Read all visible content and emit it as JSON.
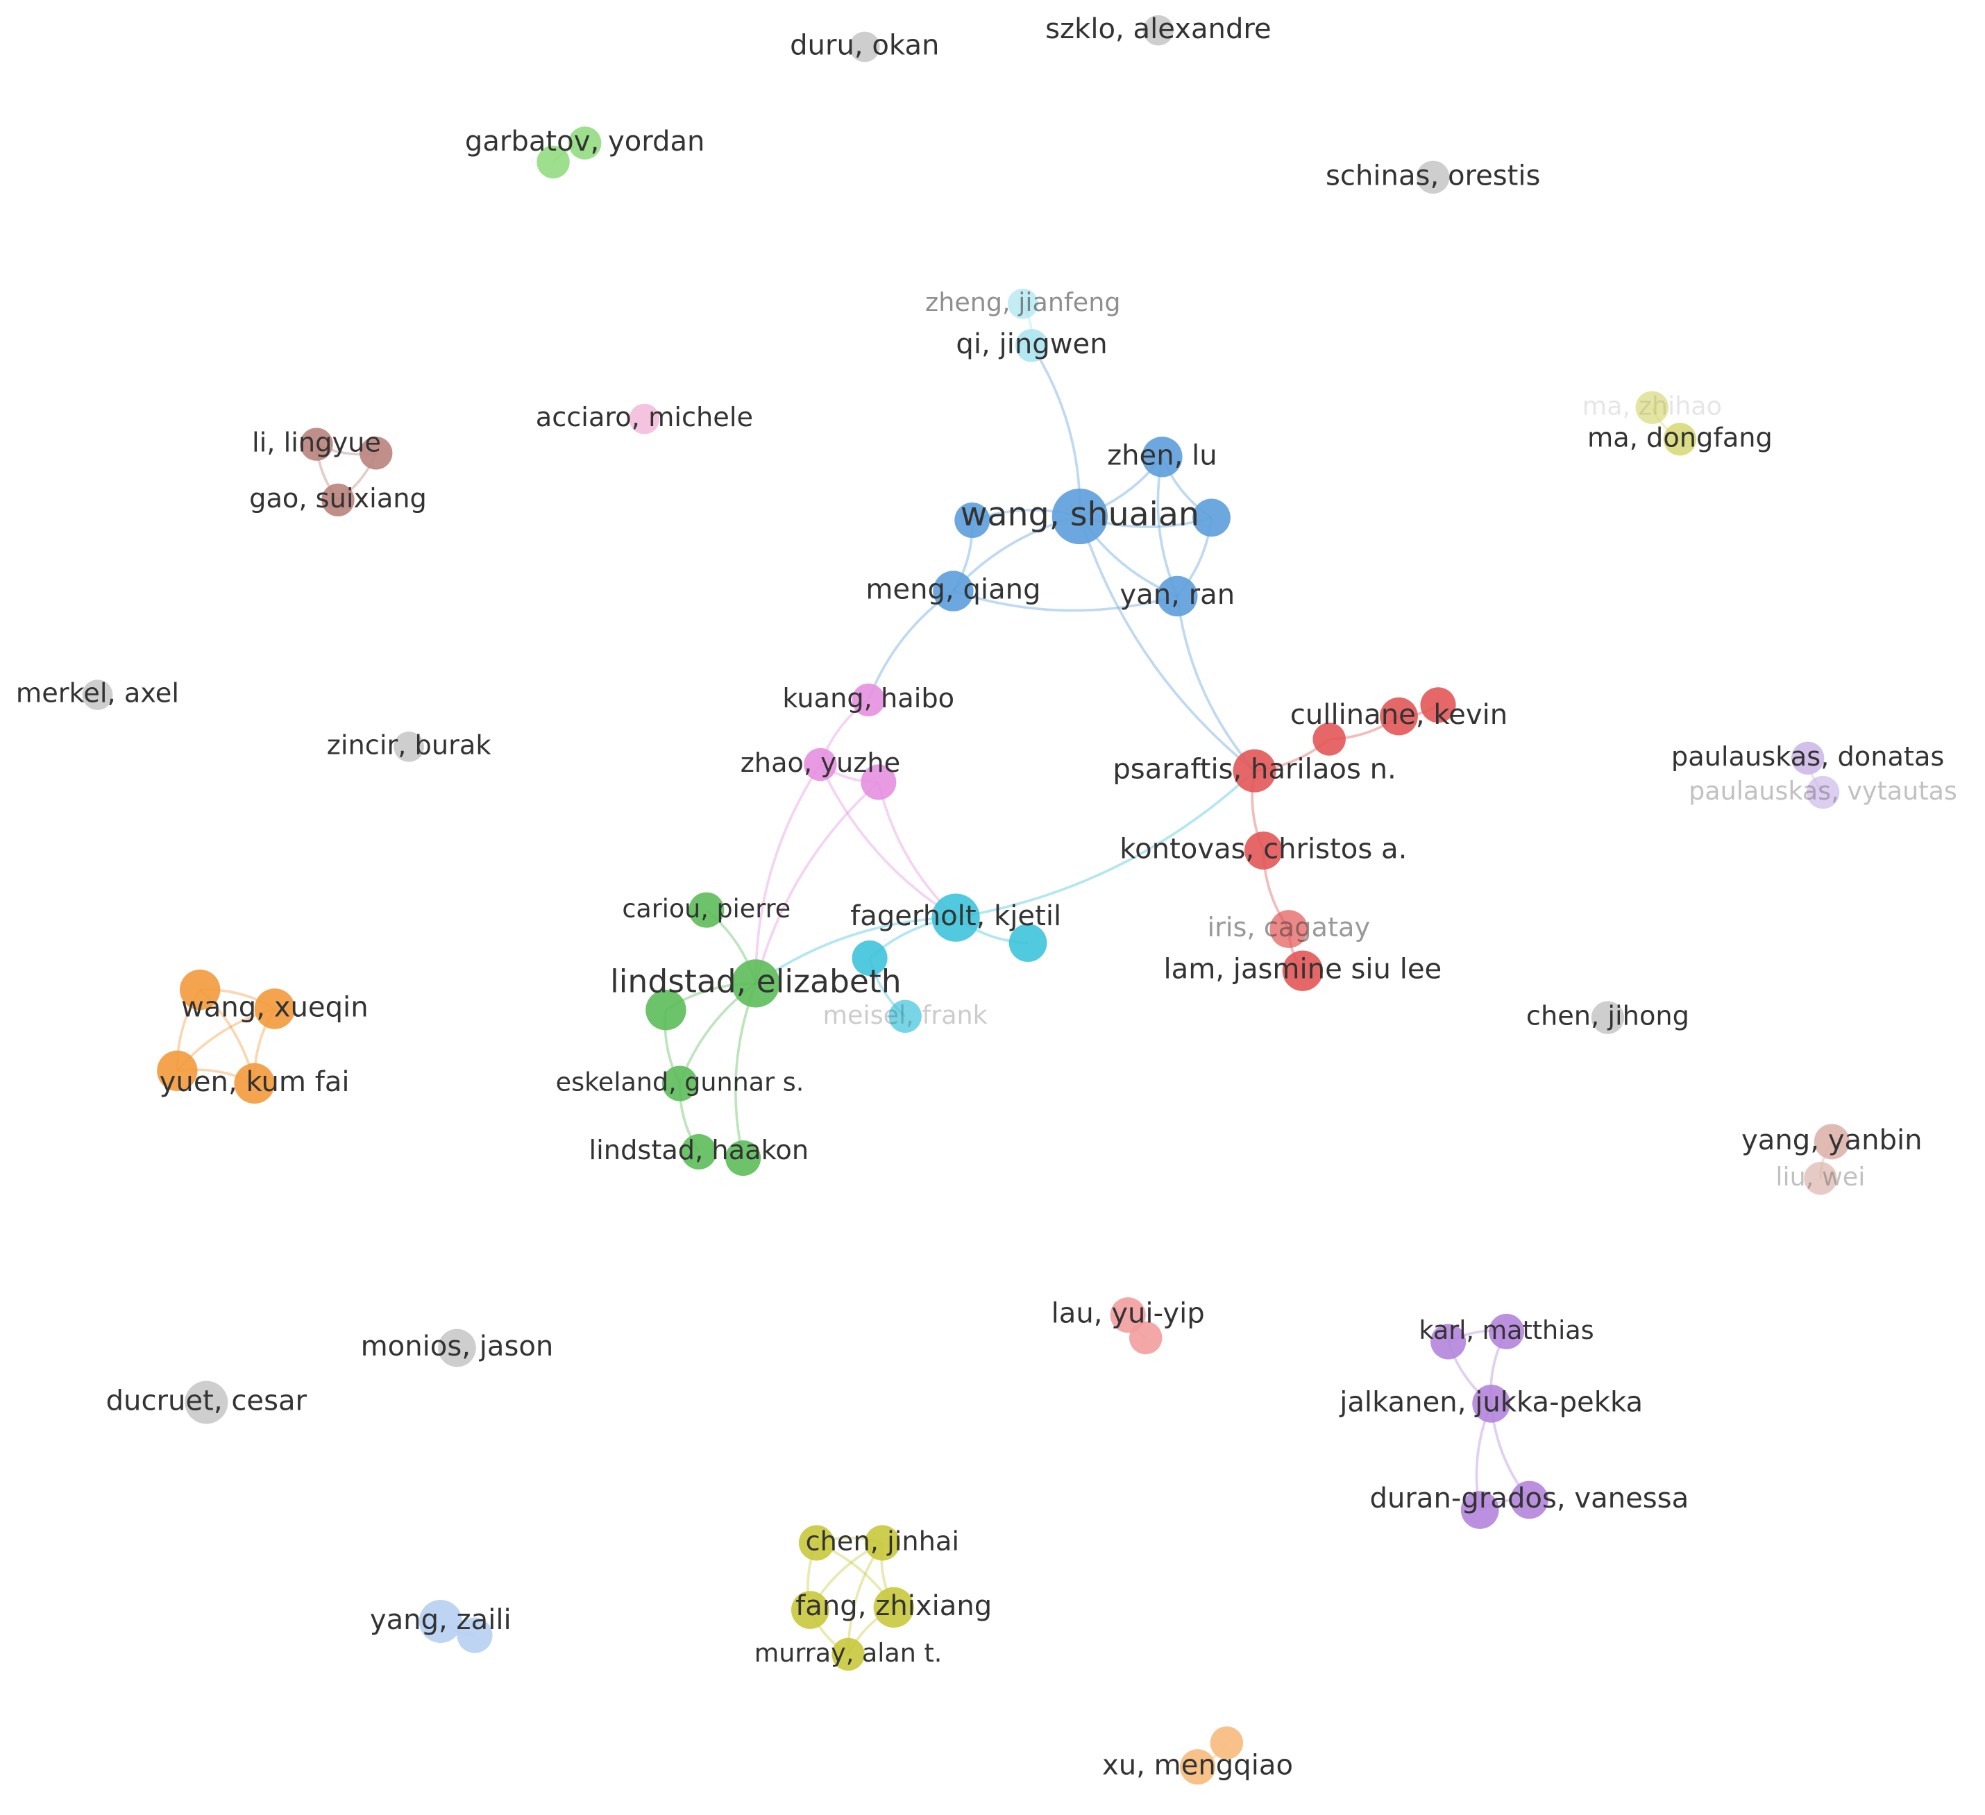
{
  "nodes": [
    {
      "label": "duru, okan"
    },
    {
      "label": "szklo, alexandre"
    },
    {
      "label": "garbatov, yordan"
    },
    {
      "label": "schinas, orestis"
    },
    {
      "label": "zheng, jianfeng"
    },
    {
      "label": "qi, jingwen"
    },
    {
      "label": "acciaro, michele"
    },
    {
      "label": "li, lingyue"
    },
    {
      "label": "gao, suixiang"
    },
    {
      "label": "ma, zhihao"
    },
    {
      "label": "ma, dongfang"
    },
    {
      "label": "zhen, lu"
    },
    {
      "label": "wang, shuaian"
    },
    {
      "label": "meng, qiang"
    },
    {
      "label": "yan, ran"
    },
    {
      "label": "merkel, axel"
    },
    {
      "label": "zincir, burak"
    },
    {
      "label": "kuang, haibo"
    },
    {
      "label": "zhao, yuzhe"
    },
    {
      "label": "cullinane, kevin"
    },
    {
      "label": "psaraftis, harilaos n."
    },
    {
      "label": "kontovas, christos a."
    },
    {
      "label": "iris, cagatay"
    },
    {
      "label": "lam, jasmine siu lee"
    },
    {
      "label": "paulauskas, donatas"
    },
    {
      "label": "paulauskas, vytautas"
    },
    {
      "label": "cariou, pierre"
    },
    {
      "label": "fagerholt, kjetil"
    },
    {
      "label": "meisel, frank"
    },
    {
      "label": "lindstad, elizabeth"
    },
    {
      "label": "eskeland, gunnar s."
    },
    {
      "label": "lindstad, haakon"
    },
    {
      "label": "wang, xueqin"
    },
    {
      "label": "yuen, kum fai"
    },
    {
      "label": "chen, jihong"
    },
    {
      "label": "yang, yanbin"
    },
    {
      "label": "liu, wei"
    },
    {
      "label": "lau, yui-yip"
    },
    {
      "label": "monios, jason"
    },
    {
      "label": "ducruet, cesar"
    },
    {
      "label": "karl, matthias"
    },
    {
      "label": "jalkanen, jukka-pekka"
    },
    {
      "label": "duran-grados, vanessa"
    },
    {
      "label": "chen, jinhai"
    },
    {
      "label": "fang, zhixiang"
    },
    {
      "label": "murray, alan t."
    },
    {
      "label": "yang, zaili"
    },
    {
      "label": "xu, mengqiao"
    }
  ]
}
